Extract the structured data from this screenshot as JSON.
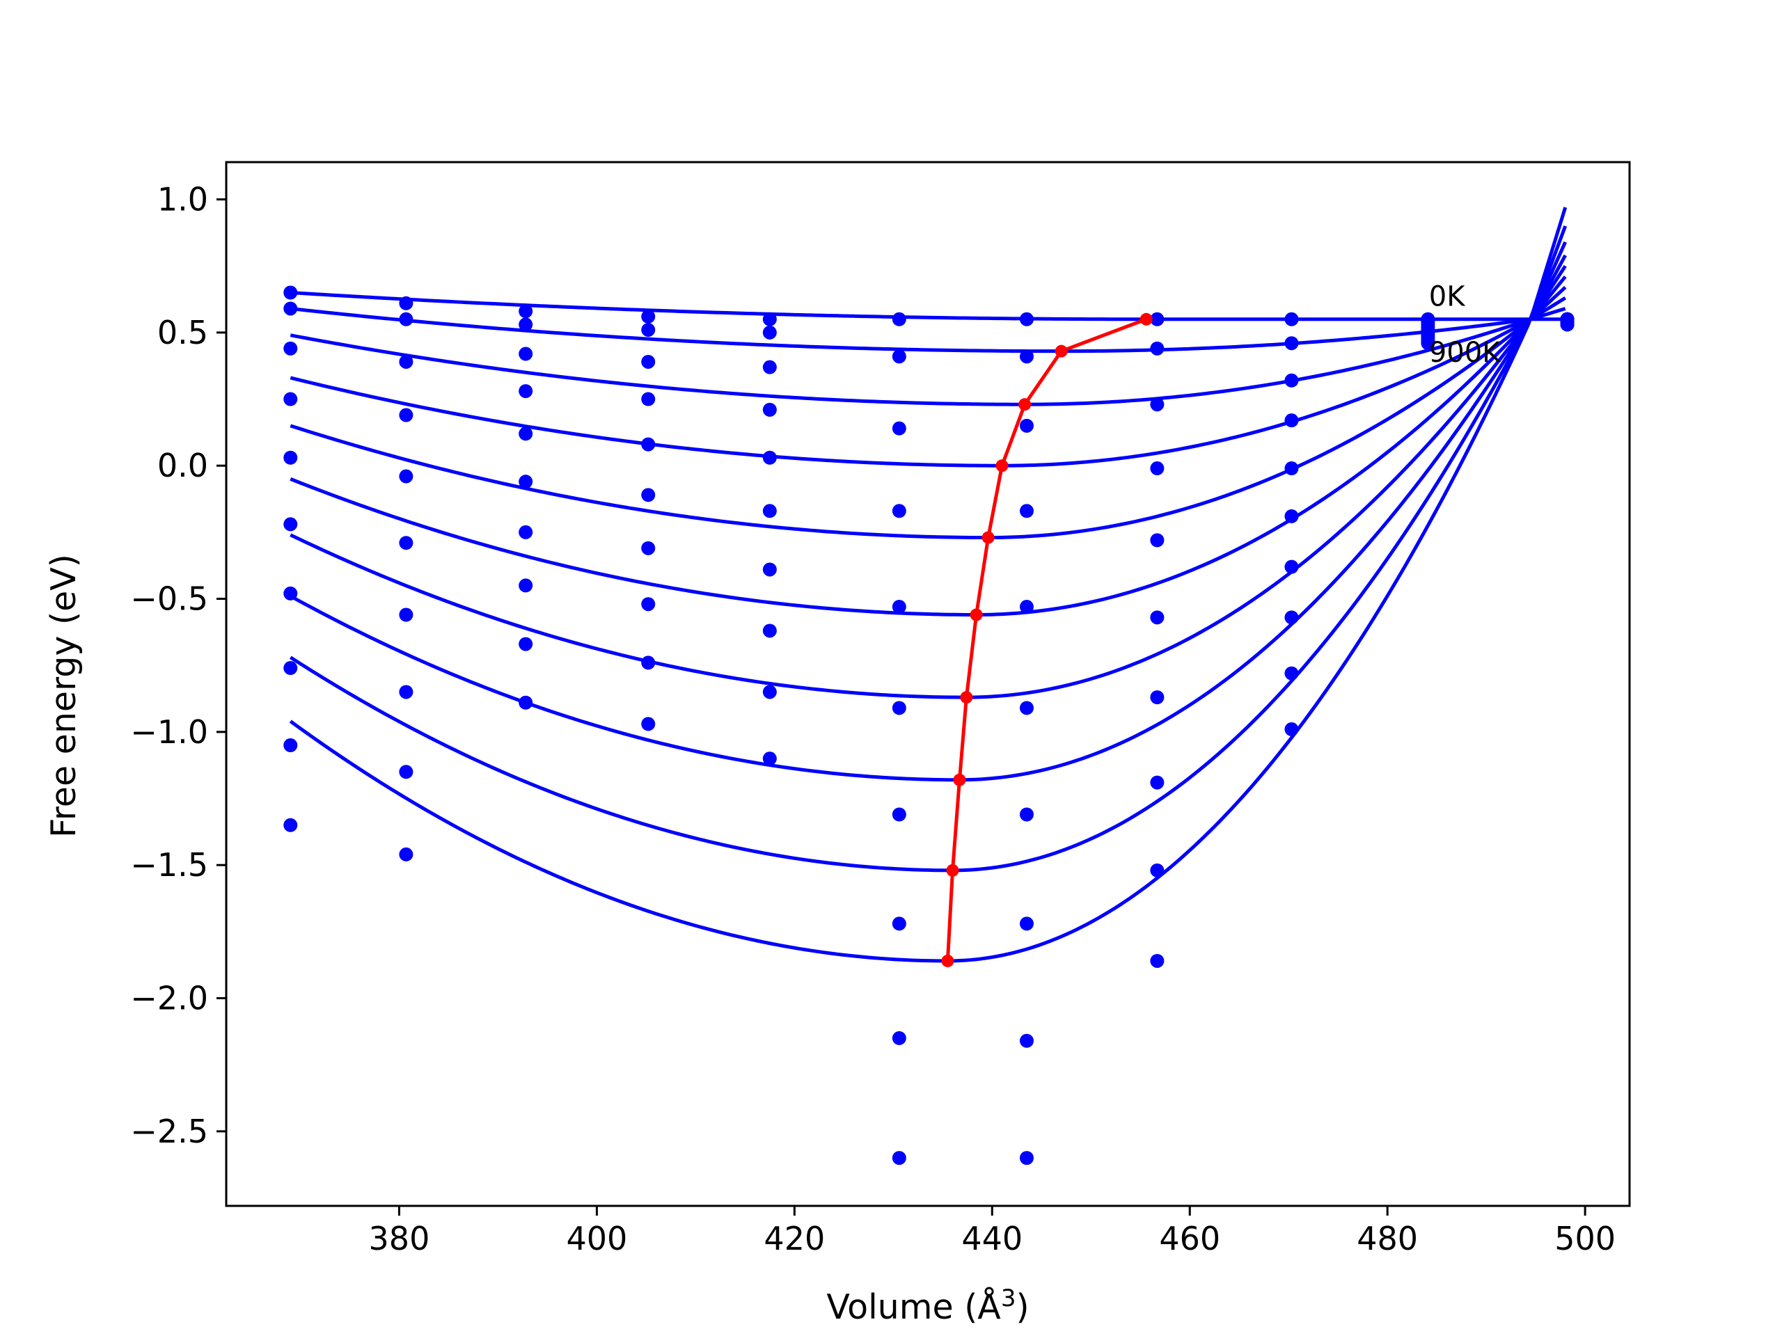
{
  "chart_data": {
    "type": "line",
    "xlabel": "Volume (Å",
    "xlabel_sup": "3",
    "xlabel_end": ")",
    "ylabel": "Free energy (eV)",
    "xlim": [
      362.5,
      504.5
    ],
    "ylim": [
      -2.78,
      1.14
    ],
    "xticks": [
      380,
      400,
      420,
      440,
      460,
      480,
      500
    ],
    "yticks": [
      1.0,
      0.5,
      0.0,
      -0.5,
      -1.0,
      -1.5,
      -2.0,
      -2.5
    ],
    "xtick_labels": [
      "380",
      "400",
      "420",
      "440",
      "460",
      "480",
      "500"
    ],
    "ytick_labels": [
      "1.0",
      "0.5",
      "0.0",
      "−0.5",
      "−1.0",
      "−1.5",
      "−2.0",
      "−2.5"
    ],
    "grid": false,
    "annotations": [
      {
        "text": "0K",
        "x": 484.2,
        "y": 0.6
      },
      {
        "text": "900K",
        "x": 484.2,
        "y": 0.39
      }
    ],
    "colors": {
      "curves": "#0000ff",
      "points": "#0000ff",
      "minima": "#ff0000"
    },
    "common_point": {
      "x": 494.5,
      "y": 0.55
    },
    "fit_curves": [
      {
        "vmin": 455.6,
        "fmin": 0.55,
        "x_start": 369,
        "y_start": 0.65,
        "x_end": 498,
        "y_end": 0.55
      },
      {
        "vmin": 447.0,
        "fmin": 0.43,
        "x_start": 369,
        "y_start": 0.59,
        "x_end": 498,
        "y_end": 0.59
      },
      {
        "vmin": 443.3,
        "fmin": 0.23,
        "x_start": 369,
        "y_start": 0.49,
        "x_end": 498,
        "y_end": 0.63
      },
      {
        "vmin": 441.0,
        "fmin": 0.0,
        "x_start": 369,
        "y_start": 0.33,
        "x_end": 498,
        "y_end": 0.67
      },
      {
        "vmin": 439.6,
        "fmin": -0.27,
        "x_start": 369,
        "y_start": 0.15,
        "x_end": 498,
        "y_end": 0.71
      },
      {
        "vmin": 438.4,
        "fmin": -0.56,
        "x_start": 369,
        "y_start": -0.05,
        "x_end": 498,
        "y_end": 0.75
      },
      {
        "vmin": 437.4,
        "fmin": -0.87,
        "x_start": 369,
        "y_start": -0.26,
        "x_end": 498,
        "y_end": 0.79
      },
      {
        "vmin": 436.7,
        "fmin": -1.18,
        "x_start": 369,
        "y_start": -0.49,
        "x_end": 498,
        "y_end": 0.84
      },
      {
        "vmin": 436.0,
        "fmin": -1.52,
        "x_start": 369,
        "y_start": -0.72,
        "x_end": 498,
        "y_end": 0.9
      },
      {
        "vmin": 435.5,
        "fmin": -1.86,
        "x_start": 369,
        "y_start": -0.96,
        "x_end": 498,
        "y_end": 0.97
      }
    ],
    "minima_path": {
      "x": [
        455.6,
        447.0,
        443.3,
        441.0,
        439.6,
        438.4,
        437.4,
        436.7,
        436.0,
        435.5
      ],
      "y": [
        0.55,
        0.43,
        0.23,
        0.0,
        -0.27,
        -0.56,
        -0.87,
        -1.18,
        -1.52,
        -1.86
      ]
    },
    "data_points": [
      {
        "x": 369.0,
        "y": [
          0.65,
          0.59,
          0.44,
          0.25,
          0.03,
          -0.22,
          -0.48,
          -0.76,
          -1.05,
          -1.35
        ]
      },
      {
        "x": 380.7,
        "y": [
          0.61,
          0.55,
          0.39,
          0.19,
          -0.04,
          -0.29,
          -0.56,
          -0.85,
          -1.15,
          -1.46
        ]
      },
      {
        "x": 392.8,
        "y": [
          0.58,
          0.53,
          0.42,
          0.28,
          0.12,
          -0.06,
          -0.25,
          -0.45,
          -0.67,
          -0.89
        ]
      },
      {
        "x": 405.2,
        "y": [
          0.56,
          0.51,
          0.39,
          0.25,
          0.08,
          -0.11,
          -0.31,
          -0.52,
          -0.74,
          -0.97
        ]
      },
      {
        "x": 417.5,
        "y": [
          0.55,
          0.5,
          0.37,
          0.21,
          0.03,
          -0.17,
          -0.39,
          -0.62,
          -0.85,
          -1.1
        ]
      },
      {
        "x": 430.6,
        "y": [
          0.55,
          0.41,
          0.14,
          -0.17,
          -0.53,
          -0.91,
          -1.31,
          -1.72,
          -2.15,
          -2.6
        ]
      },
      {
        "x": 443.5,
        "y": [
          0.55,
          0.41,
          0.15,
          -0.17,
          -0.53,
          -0.91,
          -1.31,
          -1.72,
          -2.16,
          -2.6
        ]
      },
      {
        "x": 456.7,
        "y": [
          0.55,
          0.44,
          0.23,
          -0.01,
          -0.28,
          -0.57,
          -0.87,
          -1.19,
          -1.52,
          -1.86
        ]
      },
      {
        "x": 470.3,
        "y": [
          0.55,
          0.46,
          0.32,
          0.17,
          -0.01,
          -0.19,
          -0.38,
          -0.57,
          -0.78,
          -0.99
        ]
      },
      {
        "x": 484.1,
        "y": [
          0.55,
          0.54,
          0.53,
          0.52,
          0.51,
          0.5,
          0.49,
          0.48,
          0.47,
          0.46
        ]
      },
      {
        "x": 498.2,
        "y": [
          0.55,
          0.55,
          0.55,
          0.55,
          0.55,
          0.54,
          0.54,
          0.54,
          0.53,
          0.53
        ]
      }
    ]
  }
}
